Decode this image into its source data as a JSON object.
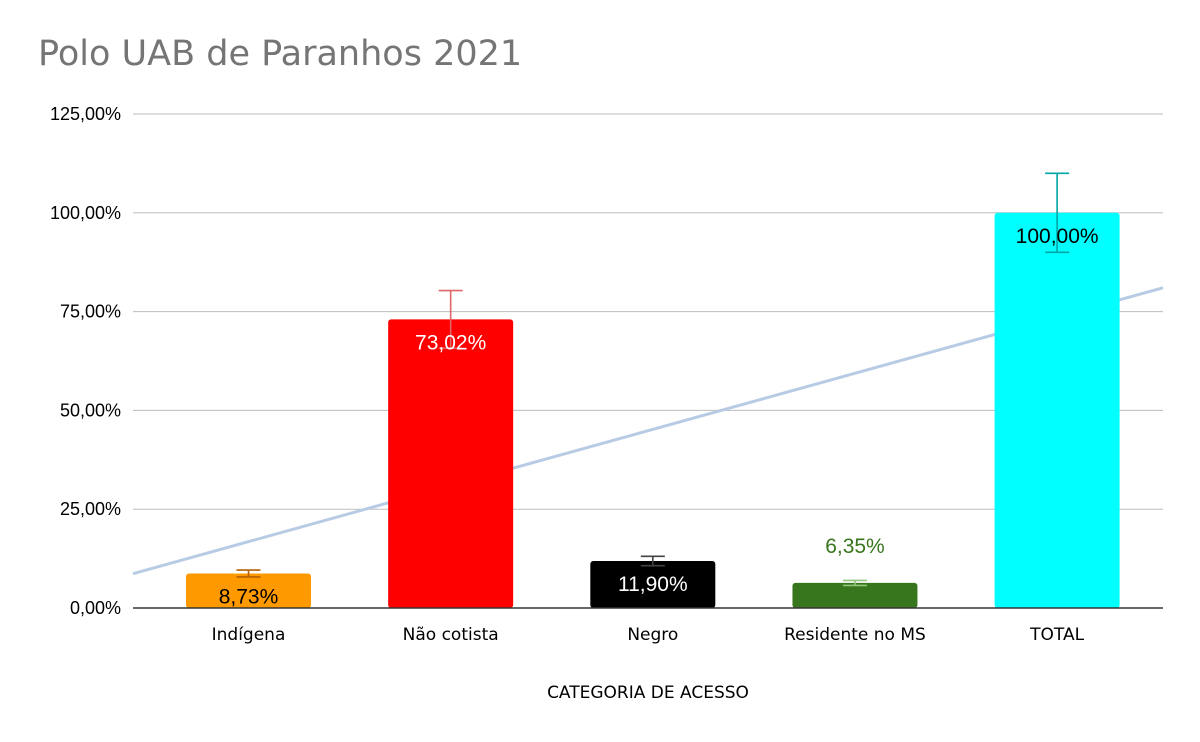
{
  "chart_data": {
    "type": "bar",
    "title": "Polo UAB de Paranhos 2021",
    "xlabel": "CATEGORIA DE ACESSO",
    "ylabel": "",
    "ylim": [
      0,
      125
    ],
    "yticks": [
      0,
      25,
      50,
      75,
      100,
      125
    ],
    "ytick_labels": [
      "0,00%",
      "25,00%",
      "50,00%",
      "75,00%",
      "100,00%",
      "125,00%"
    ],
    "grid": true,
    "legend": "none",
    "categories": [
      "Indígena",
      "Não cotista",
      "Negro",
      "Residente no MS",
      "TOTAL"
    ],
    "values": [
      8.73,
      73.02,
      11.9,
      6.35,
      100
    ],
    "data_labels": [
      "8,73%",
      "73,02%",
      "11,90%",
      "6,35%",
      "100,00%"
    ],
    "data_label_position": [
      "inside-end",
      "inside-end",
      "inside-end",
      "outside-end",
      "inside-end"
    ],
    "bar_colors": [
      "#ff9900",
      "#ff0000",
      "#000000",
      "#38761d",
      "#00ffff"
    ],
    "data_label_colors": [
      "#000000",
      "#ffffff",
      "#ffffff",
      "#38761d",
      "#000000"
    ],
    "error_bars": {
      "type": "percent",
      "amount": 10,
      "colors": [
        "#b45f06",
        "#e06666",
        "#434343",
        "#93c47d",
        "#00a5a5"
      ]
    },
    "trendline": {
      "type": "linear",
      "color": "#b7cce4",
      "slope": 14.2,
      "intercept": 2.59
    }
  }
}
